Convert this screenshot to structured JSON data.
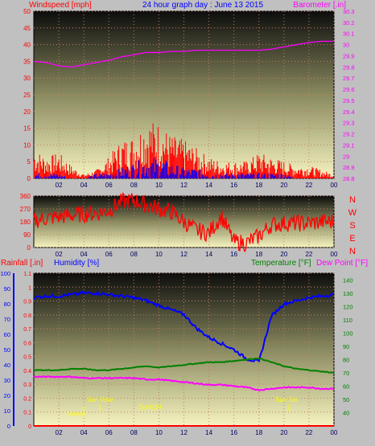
{
  "header": {
    "left_label": "Windspeed [mph]",
    "title": "24 hour graph day : June 13 2015",
    "right_label": "Barometer [.in]"
  },
  "colors": {
    "wind": "#ff0000",
    "gust_low": "#0000ff",
    "baro": "#ff00ff",
    "winddir": "#ff0000",
    "rain": "#ff0000",
    "humidity": "#0000ff",
    "temperature": "#008000",
    "dewpoint": "#ff00ff",
    "sun_events": "#ffff00"
  },
  "chart_data": [
    {
      "type": "line",
      "name": "wind-barometer",
      "xlabel": "",
      "x_ticks": [
        "02",
        "04",
        "06",
        "08",
        "10",
        "12",
        "14",
        "16",
        "18",
        "20",
        "22",
        "00"
      ],
      "left_axis": {
        "label": "Windspeed [mph]",
        "ylim": [
          0,
          50
        ],
        "ticks": [
          "0",
          "5",
          "10",
          "15",
          "20",
          "25",
          "30",
          "35",
          "40",
          "45",
          "50"
        ]
      },
      "right_axis": {
        "label": "Barometer [.in]",
        "ylim": [
          28.8,
          30.3
        ],
        "ticks": [
          "28.8",
          "28.9",
          "29",
          "29.1",
          "29.2",
          "29.3",
          "29.4",
          "29.5",
          "29.6",
          "29.7",
          "29.8",
          "29.9",
          "30",
          "30.1",
          "30.2",
          "30.3"
        ]
      },
      "grid": true,
      "series": [
        {
          "name": "Barometer",
          "axis": "right",
          "x": [
            0,
            1,
            2,
            3,
            4,
            5,
            6,
            7,
            8,
            9,
            10,
            11,
            12,
            13,
            14,
            15,
            16,
            17,
            18,
            19,
            20,
            21,
            22,
            23,
            24
          ],
          "values": [
            29.85,
            29.84,
            29.81,
            29.8,
            29.82,
            29.84,
            29.86,
            29.89,
            29.91,
            29.93,
            29.93,
            29.94,
            29.94,
            29.95,
            29.95,
            29.95,
            29.95,
            29.95,
            29.95,
            29.96,
            29.98,
            30.0,
            30.02,
            30.03,
            30.03
          ]
        },
        {
          "name": "Windspeed",
          "axis": "left",
          "x": [
            0,
            1,
            2,
            3,
            4,
            5,
            6,
            7,
            8,
            9,
            10,
            11,
            12,
            13,
            14,
            15,
            16,
            17,
            18,
            19,
            20,
            21,
            22,
            23,
            24
          ],
          "values": [
            7,
            5,
            6,
            3,
            1,
            2,
            5,
            9,
            10,
            14,
            13,
            10,
            9,
            7,
            5,
            4,
            4,
            4,
            6,
            5,
            4,
            3,
            3,
            2,
            1
          ]
        },
        {
          "name": "Gust low",
          "axis": "left",
          "x": [
            0,
            1,
            2,
            3,
            4,
            5,
            6,
            7,
            8,
            9,
            10,
            11,
            12,
            13,
            14,
            15,
            16,
            17,
            18,
            19,
            20,
            21,
            22,
            23,
            24
          ],
          "values": [
            1,
            1,
            1,
            0,
            0,
            1,
            1,
            2,
            3,
            4,
            4,
            3,
            2,
            2,
            1,
            1,
            1,
            1,
            1,
            1,
            1,
            0,
            0,
            0,
            0
          ]
        }
      ]
    },
    {
      "type": "line",
      "name": "wind-direction",
      "x_ticks": [
        "02",
        "04",
        "06",
        "08",
        "10",
        "12",
        "14",
        "16",
        "18",
        "20",
        "22",
        "00"
      ],
      "left_axis": {
        "ylim": [
          0,
          360
        ],
        "ticks": [
          "0",
          "90",
          "180",
          "270",
          "360"
        ]
      },
      "right_axis": {
        "ticks": [
          "N",
          "W",
          "S",
          "E",
          "N"
        ]
      },
      "grid": true,
      "series": [
        {
          "name": "Wind direction",
          "x": [
            0,
            1,
            2,
            3,
            4,
            5,
            6,
            7,
            8,
            9,
            10,
            11,
            12,
            13,
            14,
            15,
            16,
            17,
            18,
            19,
            20,
            21,
            22,
            23,
            24
          ],
          "values": [
            190,
            205,
            215,
            225,
            235,
            240,
            260,
            320,
            330,
            300,
            270,
            250,
            180,
            120,
            100,
            220,
            40,
            30,
            80,
            160,
            170,
            170,
            170,
            180,
            180
          ]
        }
      ]
    },
    {
      "type": "line",
      "name": "rain-humidity-temperature",
      "x_ticks": [
        "02",
        "04",
        "06",
        "08",
        "10",
        "12",
        "14",
        "16",
        "18",
        "20",
        "22",
        "00"
      ],
      "left_axis_rain": {
        "label": "Rainfall [.in]",
        "ylim": [
          0,
          1.1
        ],
        "ticks": [
          "0",
          "0.05",
          "0.1",
          "0.15",
          "0.2",
          "0.25",
          "0.3",
          "0.35",
          "0.4",
          "0.45",
          "0.5",
          "0.55",
          "0.6",
          "0.65",
          "0.7",
          "0.75",
          "0.8",
          "0.85",
          "0.9",
          "0.95",
          "1",
          "1.05",
          "1.1"
        ]
      },
      "left_axis_humidity": {
        "label": "Humidity [%]",
        "ylim": [
          0,
          100
        ],
        "ticks": [
          "0",
          "10",
          "20",
          "30",
          "40",
          "50",
          "60",
          "70",
          "80",
          "90",
          "100"
        ]
      },
      "right_axis": {
        "label": "Temperature [°F]",
        "label2": "Dew Point [°F]",
        "ylim": [
          30,
          145
        ],
        "ticks": [
          "40",
          "50",
          "60",
          "70",
          "80",
          "90",
          "100",
          "110",
          "120",
          "130",
          "140"
        ]
      },
      "grid": true,
      "annotations": [
        "Sun Rise",
        "Sunlight",
        "Lowest",
        "Sun Set"
      ],
      "series": [
        {
          "name": "Humidity",
          "axis": "humidity",
          "x": [
            0,
            1,
            2,
            3,
            4,
            5,
            6,
            7,
            8,
            9,
            10,
            11,
            12,
            13,
            14,
            15,
            16,
            17,
            18,
            19,
            20,
            21,
            22,
            23,
            24
          ],
          "values": [
            84,
            85,
            85,
            86,
            87,
            87,
            86,
            85,
            84,
            82,
            79,
            76,
            73,
            64,
            58,
            54,
            50,
            44,
            42,
            72,
            80,
            82,
            84,
            85,
            86
          ]
        },
        {
          "name": "Temperature",
          "axis": "temp",
          "x": [
            0,
            1,
            2,
            3,
            4,
            5,
            6,
            7,
            8,
            9,
            10,
            11,
            12,
            13,
            14,
            15,
            16,
            17,
            18,
            19,
            20,
            21,
            22,
            23,
            24
          ],
          "values": [
            72,
            72,
            72,
            73,
            73,
            72,
            72,
            73,
            74,
            75,
            74,
            75,
            76,
            77,
            78,
            78,
            79,
            80,
            81,
            78,
            75,
            73,
            72,
            71,
            70
          ]
        },
        {
          "name": "Dew Point",
          "axis": "temp",
          "x": [
            0,
            1,
            2,
            3,
            4,
            5,
            6,
            7,
            8,
            9,
            10,
            11,
            12,
            13,
            14,
            15,
            16,
            17,
            18,
            19,
            20,
            21,
            22,
            23,
            24
          ],
          "values": [
            67,
            67,
            67,
            67,
            66,
            66,
            66,
            66,
            66,
            65,
            65,
            64,
            63,
            62,
            61,
            61,
            60,
            59,
            57,
            58,
            59,
            59,
            59,
            58,
            58
          ]
        },
        {
          "name": "Rainfall",
          "axis": "rain",
          "x": [
            0,
            24
          ],
          "values": [
            0,
            0
          ]
        }
      ]
    }
  ]
}
